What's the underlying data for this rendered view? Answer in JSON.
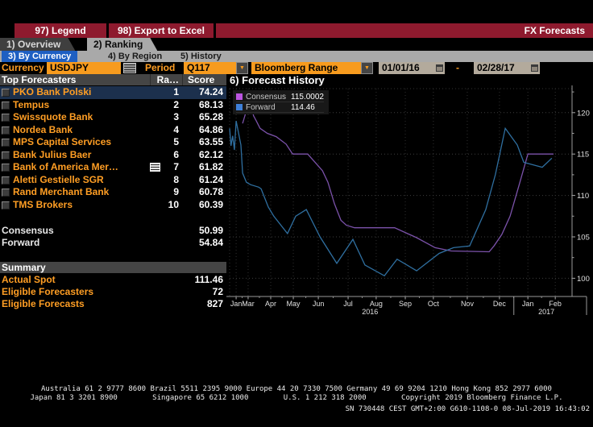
{
  "titlebar": {
    "legend_button": "97) Legend",
    "export_button": "98) Export to Excel",
    "app_title": "FX Forecasts"
  },
  "tabs": {
    "overview": "1) Overview",
    "ranking": "2) Ranking"
  },
  "subtabs": {
    "by_currency": "3) By Currency",
    "by_region": "4) By Region",
    "history": "5) History"
  },
  "toolbar": {
    "currency_label": "Currency",
    "currency_value": "USDJPY",
    "period_label": "Period",
    "period_value": "Q117",
    "range_value": "Bloomberg Range",
    "date_from": "01/01/16",
    "date_separator": "-",
    "date_to": "02/28/17"
  },
  "forecasters": {
    "headers": {
      "name": "Top Forecasters",
      "rank": "Ra…",
      "score": "Score"
    },
    "rows": [
      {
        "name": "PKO Bank Polski",
        "rank": "1",
        "score": "74.24",
        "selected": true,
        "icon": false
      },
      {
        "name": "Tempus",
        "rank": "2",
        "score": "68.13",
        "selected": false,
        "icon": false
      },
      {
        "name": "Swissquote Bank",
        "rank": "3",
        "score": "65.28",
        "selected": false,
        "icon": false
      },
      {
        "name": "Nordea Bank",
        "rank": "4",
        "score": "64.86",
        "selected": false,
        "icon": false
      },
      {
        "name": "MPS Capital Services",
        "rank": "5",
        "score": "63.55",
        "selected": false,
        "icon": false
      },
      {
        "name": "Bank Julius Baer",
        "rank": "6",
        "score": "62.12",
        "selected": false,
        "icon": false
      },
      {
        "name": "Bank of America Mer…",
        "rank": "7",
        "score": "61.82",
        "selected": false,
        "icon": true
      },
      {
        "name": "Aletti Gestielle SGR",
        "rank": "8",
        "score": "61.24",
        "selected": false,
        "icon": false
      },
      {
        "name": "Rand Merchant Bank",
        "rank": "9",
        "score": "60.78",
        "selected": false,
        "icon": false
      },
      {
        "name": "TMS Brokers",
        "rank": "10",
        "score": "60.39",
        "selected": false,
        "icon": false
      }
    ],
    "aggregates": [
      {
        "label": "Consensus",
        "value": "50.99"
      },
      {
        "label": "Forward",
        "value": "54.84"
      }
    ]
  },
  "summary": {
    "title": "Summary",
    "rows": [
      {
        "label": "Actual Spot",
        "value": "111.46"
      },
      {
        "label": "Eligible Forecasters",
        "value": "72"
      },
      {
        "label": "Eligible Forecasts",
        "value": "827"
      }
    ]
  },
  "chart_data": {
    "type": "line",
    "title": "6) Forecast History",
    "legend_position": "top-left",
    "grid": "dotted",
    "legend": [
      {
        "label": "Consensus",
        "value": "115.0002",
        "swatch": "#bb55e0"
      },
      {
        "label": "Forward",
        "value": "114.46",
        "swatch": "#3f80d8"
      }
    ],
    "ylim": [
      97.8,
      122.9
    ],
    "yticks": [
      100,
      105,
      110,
      115,
      120
    ],
    "yticks_minor": [
      102.5,
      107.5,
      112.5,
      117.5,
      122.5
    ],
    "x_months": [
      {
        "label": "Jan",
        "pos": 0.019
      },
      {
        "label": "Mar",
        "pos": 0.054
      },
      {
        "label": "Apr",
        "pos": 0.12
      },
      {
        "label": "May",
        "pos": 0.186
      },
      {
        "label": "Jun",
        "pos": 0.259
      },
      {
        "label": "Jul",
        "pos": 0.346
      },
      {
        "label": "Aug",
        "pos": 0.428
      },
      {
        "label": "Sep",
        "pos": 0.513
      },
      {
        "label": "Oct",
        "pos": 0.595
      },
      {
        "label": "Nov",
        "pos": 0.694
      },
      {
        "label": "Dec",
        "pos": 0.788
      },
      {
        "label": "Jan",
        "pos": 0.871
      },
      {
        "label": "Feb",
        "pos": 0.951
      }
    ],
    "x_years": [
      {
        "label": "2016",
        "pos": 0.41
      },
      {
        "label": "2017",
        "pos": 0.925
      }
    ],
    "year_separator_pos": 0.83,
    "series": [
      {
        "name": "Consensus",
        "color": "#7b52aa",
        "points": [
          [
            0.038,
            118.7
          ],
          [
            0.05,
            120.4
          ],
          [
            0.059,
            121.2
          ],
          [
            0.07,
            119.6
          ],
          [
            0.078,
            119.0
          ],
          [
            0.089,
            118.1
          ],
          [
            0.11,
            117.5
          ],
          [
            0.136,
            117.1
          ],
          [
            0.165,
            116.2
          ],
          [
            0.184,
            115.0
          ],
          [
            0.228,
            115.0
          ],
          [
            0.271,
            113.0
          ],
          [
            0.287,
            111.6
          ],
          [
            0.306,
            109.0
          ],
          [
            0.325,
            107.0
          ],
          [
            0.341,
            106.4
          ],
          [
            0.365,
            106.1
          ],
          [
            0.482,
            106.1
          ],
          [
            0.546,
            104.9
          ],
          [
            0.6,
            103.7
          ],
          [
            0.647,
            103.3
          ],
          [
            0.758,
            103.2
          ],
          [
            0.772,
            103.9
          ],
          [
            0.795,
            105.3
          ],
          [
            0.819,
            107.5
          ],
          [
            0.847,
            111.5
          ],
          [
            0.871,
            115.0
          ],
          [
            0.946,
            115.0
          ]
        ]
      },
      {
        "name": "Forward",
        "color": "#2f6fa0",
        "points": [
          [
            0.0,
            118.1
          ],
          [
            0.004,
            116.0
          ],
          [
            0.009,
            117.2
          ],
          [
            0.014,
            115.5
          ],
          [
            0.019,
            119.0
          ],
          [
            0.033,
            116.1
          ],
          [
            0.038,
            112.7
          ],
          [
            0.049,
            111.6
          ],
          [
            0.061,
            111.3
          ],
          [
            0.085,
            111.0
          ],
          [
            0.092,
            110.8
          ],
          [
            0.113,
            108.6
          ],
          [
            0.129,
            107.5
          ],
          [
            0.169,
            105.4
          ],
          [
            0.193,
            107.5
          ],
          [
            0.224,
            108.3
          ],
          [
            0.264,
            105.0
          ],
          [
            0.313,
            101.8
          ],
          [
            0.36,
            104.7
          ],
          [
            0.395,
            101.6
          ],
          [
            0.452,
            100.3
          ],
          [
            0.489,
            102.3
          ],
          [
            0.546,
            100.9
          ],
          [
            0.612,
            103.0
          ],
          [
            0.654,
            103.7
          ],
          [
            0.701,
            103.9
          ],
          [
            0.748,
            108.3
          ],
          [
            0.776,
            112.5
          ],
          [
            0.805,
            118.1
          ],
          [
            0.84,
            116.1
          ],
          [
            0.859,
            114.0
          ],
          [
            0.913,
            113.4
          ],
          [
            0.941,
            114.5
          ]
        ]
      }
    ]
  },
  "footer": {
    "line1": "Australia 61 2 9777 8600 Brazil 5511 2395 9000 Europe 44 20 7330 7500 Germany 49 69 9204 1210 Hong Kong 852 2977 6000",
    "line2": "Japan 81 3 3201 8900        Singapore 65 6212 1000        U.S. 1 212 318 2000        Copyright 2019 Bloomberg Finance L.P.",
    "line3": "SN 730448 CEST GMT+2:00 G610-1108-0 08-Jul-2019 16:43:02"
  },
  "colors": {
    "titlebar_red": "#8e1a2e",
    "accent_orange": "#ff9e24",
    "field_orange": "#f79b1e",
    "selection_blue": "#1c304d",
    "subtab_blue": "#1e5fc2",
    "consensus_purple": "#7b52aa",
    "forward_blue": "#2f6fa0"
  }
}
